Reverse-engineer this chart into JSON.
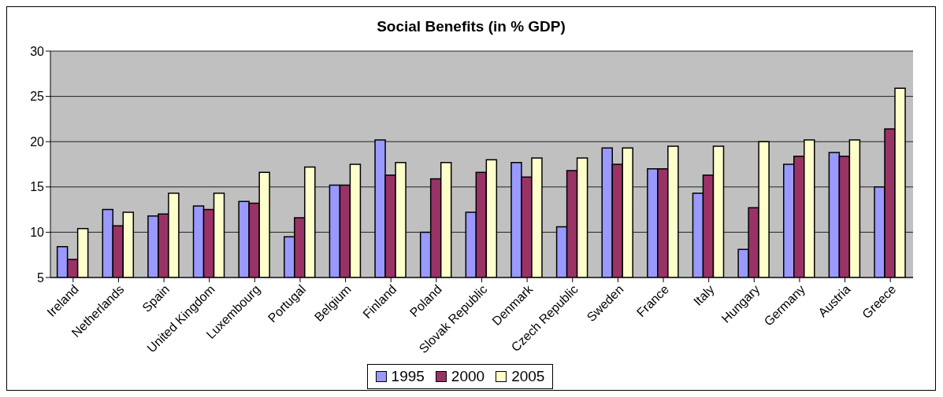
{
  "chart_data": {
    "type": "bar",
    "title": "Social Benefits (in % GDP)",
    "categories": [
      "Ireland",
      "Netherlands",
      "Spain",
      "United Kingdom",
      "Luxembourg",
      "Portugal",
      "Belgium",
      "Finland",
      "Poland",
      "Slovak Republic",
      "Denmark",
      "Czech Republic",
      "Sweden",
      "France",
      "Italy",
      "Hungary",
      "Germany",
      "Austria",
      "Greece"
    ],
    "series": [
      {
        "name": "1995",
        "color": "#9999ff",
        "values": [
          8.4,
          12.5,
          11.8,
          12.9,
          13.4,
          9.5,
          15.2,
          20.2,
          10.0,
          12.2,
          17.7,
          10.6,
          19.3,
          17.0,
          14.3,
          8.1,
          17.5,
          18.8,
          15.0
        ]
      },
      {
        "name": "2000",
        "color": "#993366",
        "values": [
          7.0,
          10.7,
          12.0,
          12.5,
          13.2,
          11.6,
          15.2,
          16.3,
          15.9,
          16.6,
          16.1,
          16.8,
          17.5,
          17.0,
          16.3,
          12.7,
          18.4,
          18.4,
          21.4
        ]
      },
      {
        "name": "2005",
        "color": "#ffffcc",
        "values": [
          10.4,
          12.2,
          14.3,
          14.3,
          16.6,
          17.2,
          17.5,
          17.7,
          17.7,
          18.0,
          18.2,
          18.2,
          19.3,
          19.5,
          19.5,
          20.0,
          20.2,
          20.2,
          25.9
        ]
      }
    ],
    "ylim": [
      5,
      30
    ],
    "yticks": [
      5,
      10,
      15,
      20,
      25,
      30
    ],
    "grid": "y",
    "legend": "bottom"
  }
}
